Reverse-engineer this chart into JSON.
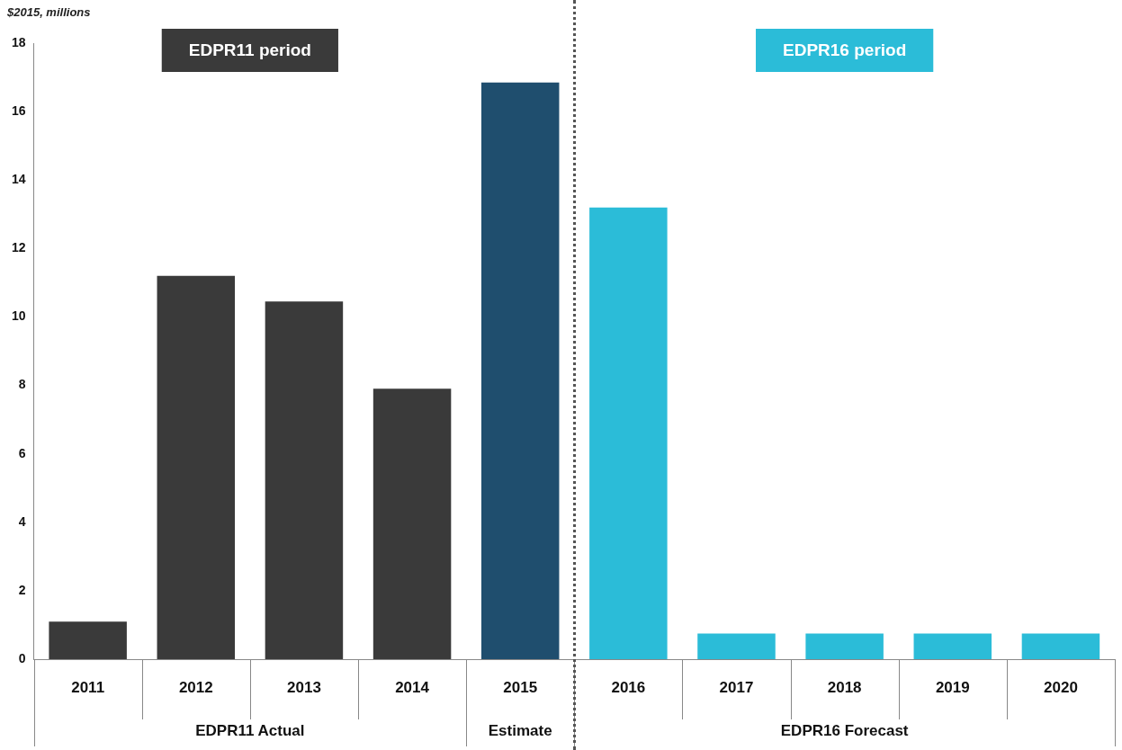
{
  "chart_data": {
    "type": "bar",
    "ylabel": "$2015, millions",
    "categories": [
      "2011",
      "2012",
      "2013",
      "2014",
      "2015",
      "2016",
      "2017",
      "2018",
      "2019",
      "2020"
    ],
    "values": [
      1.1,
      11.2,
      10.45,
      7.9,
      16.85,
      13.2,
      0.75,
      0.75,
      0.75,
      0.75
    ],
    "colors": [
      "#3a3a3a",
      "#3a3a3a",
      "#3a3a3a",
      "#3a3a3a",
      "#1f4e6e",
      "#2bbcd8",
      "#2bbcd8",
      "#2bbcd8",
      "#2bbcd8",
      "#2bbcd8"
    ],
    "ylim": [
      0,
      18
    ],
    "yticks": [
      0,
      2,
      4,
      6,
      8,
      10,
      12,
      14,
      16,
      18
    ],
    "grid": false,
    "legend": false,
    "annotations": [
      "EDPR11 period",
      "EDPR16 period",
      "EDPR11 Actual",
      "Estimate",
      "EDPR16 Forecast"
    ]
  }
}
